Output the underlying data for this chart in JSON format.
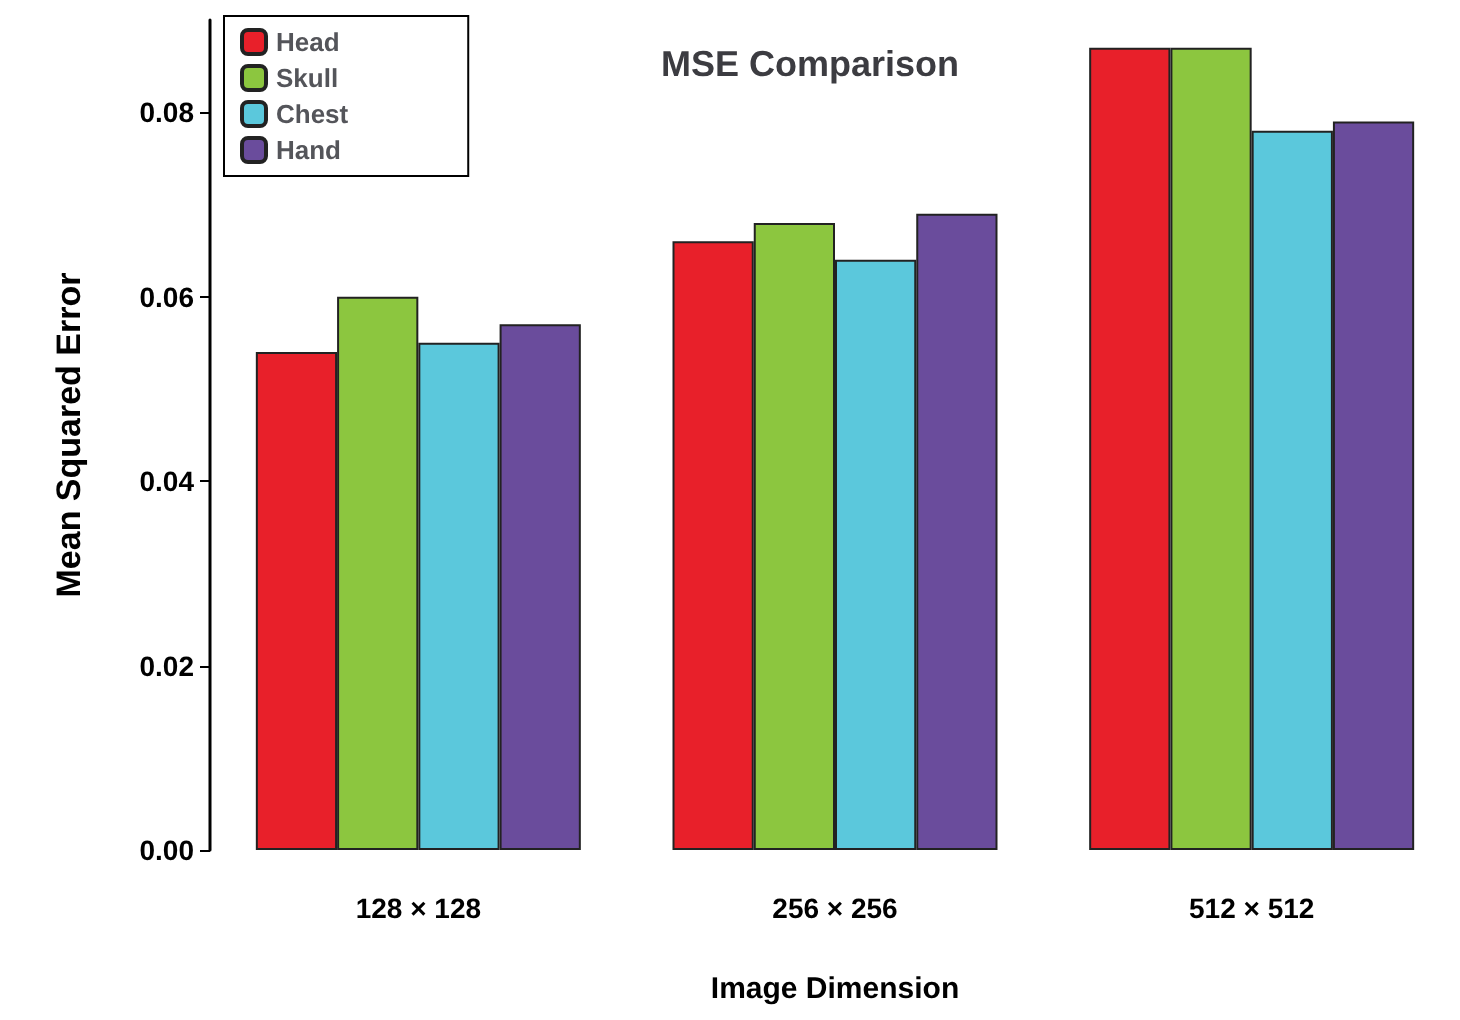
{
  "chart_data": {
    "type": "bar",
    "title": "MSE Comparison",
    "xlabel": "Image Dimension",
    "ylabel": "Mean Squared Error",
    "categories": [
      "128 × 128",
      "256 × 256",
      "512 × 512"
    ],
    "series": [
      {
        "name": "Head",
        "color": "#e8202a",
        "values": [
          0.054,
          0.066,
          0.087
        ]
      },
      {
        "name": "Skull",
        "color": "#8cc63f",
        "values": [
          0.06,
          0.068,
          0.087
        ]
      },
      {
        "name": "Chest",
        "color": "#5bc8dc",
        "values": [
          0.055,
          0.064,
          0.078
        ]
      },
      {
        "name": "Hand",
        "color": "#6a4c9c",
        "values": [
          0.057,
          0.069,
          0.079
        ]
      }
    ],
    "ylim": [
      0,
      0.09
    ],
    "yticks": [
      {
        "value": 0,
        "label": "0.00"
      },
      {
        "value": 0.02,
        "label": "0.02"
      },
      {
        "value": 0.04,
        "label": "0.04"
      },
      {
        "value": 0.06,
        "label": "0.06"
      },
      {
        "value": 0.08,
        "label": "0.08"
      }
    ],
    "grid": false,
    "legend": "top left"
  }
}
